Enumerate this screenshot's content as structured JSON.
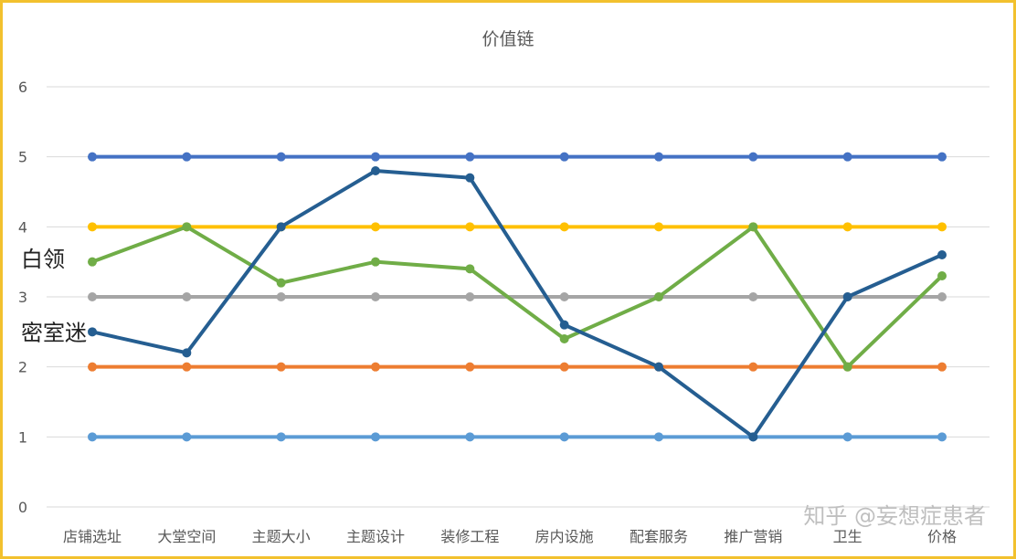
{
  "chart_data": {
    "type": "line",
    "title": "价值链",
    "xlabel": "",
    "ylabel": "",
    "ylim": [
      0,
      6
    ],
    "yticks": [
      0,
      1,
      2,
      3,
      4,
      5,
      6
    ],
    "grid": true,
    "categories": [
      "店铺选址",
      "大堂空间",
      "主题大小",
      "主题设计",
      "装修工程",
      "房内设施",
      "配套服务",
      "推广营销",
      "卫生",
      "价格"
    ],
    "series": [
      {
        "color": "#4472c4",
        "values": [
          5,
          5,
          5,
          5,
          5,
          5,
          5,
          5,
          5,
          5
        ]
      },
      {
        "color": "#ffc000",
        "values": [
          4,
          4,
          4,
          4,
          4,
          4,
          4,
          4,
          4,
          4
        ]
      },
      {
        "color": "#a5a5a5",
        "values": [
          3,
          3,
          3,
          3,
          3,
          3,
          3,
          3,
          3,
          3
        ]
      },
      {
        "color": "#ed7d31",
        "values": [
          2,
          2,
          2,
          2,
          2,
          2,
          2,
          2,
          2,
          2
        ]
      },
      {
        "color": "#5b9bd5",
        "values": [
          1,
          1,
          1,
          1,
          1,
          1,
          1,
          1,
          1,
          1
        ]
      },
      {
        "color": "#70ad47",
        "values": [
          3.5,
          4,
          3.2,
          3.5,
          3.4,
          2.4,
          3,
          4,
          2,
          3.3
        ]
      },
      {
        "color": "#255e91",
        "values": [
          2.5,
          2.2,
          4,
          4.8,
          4.7,
          2.6,
          2,
          1,
          3,
          3.6
        ]
      }
    ],
    "annotations": [
      {
        "text": "白领",
        "value": 3.55
      },
      {
        "text": "密室迷",
        "value": 2.5
      }
    ]
  },
  "colors": {
    "frame": "#f2c12e",
    "grid": "#d9d9d9",
    "text": "#595959"
  },
  "watermark": "知乎 @妄想症患者"
}
